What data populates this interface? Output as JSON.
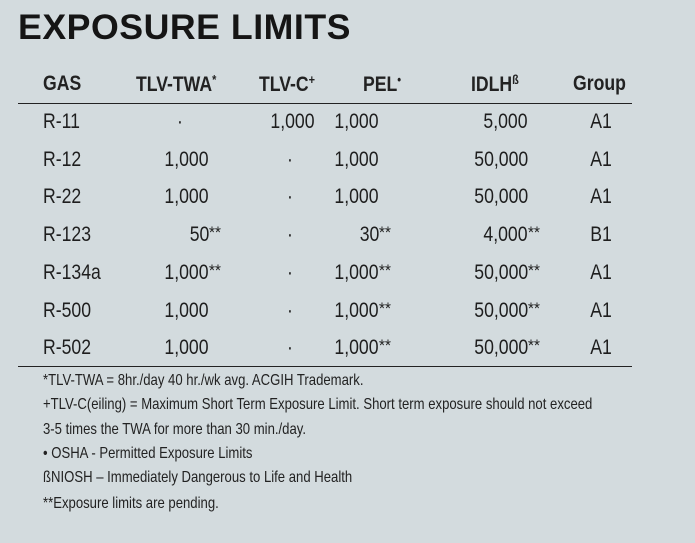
{
  "title": "EXPOSURE LIMITS",
  "headers": {
    "gas": "GAS",
    "tlv_twa": "TLV-TWA",
    "tlv_twa_mark": "*",
    "tlv_c": "TLV-C",
    "tlv_c_mark": "+",
    "pel": "PEL",
    "pel_mark": "•",
    "idlh": "IDLH",
    "idlh_mark": "ß",
    "group": "Group"
  },
  "rows": [
    {
      "gas": "R-11",
      "tlv_twa": "·",
      "tlv_twa_s": "",
      "tlv_c": "1,000",
      "pel": "1,000",
      "pel_s": "",
      "idlh": "5,000",
      "idlh_s": "",
      "group": "A1"
    },
    {
      "gas": "R-12",
      "tlv_twa": "1,000",
      "tlv_twa_s": "",
      "tlv_c": "·",
      "pel": "1,000",
      "pel_s": "",
      "idlh": "50,000",
      "idlh_s": "",
      "group": "A1"
    },
    {
      "gas": "R-22",
      "tlv_twa": "1,000",
      "tlv_twa_s": "",
      "tlv_c": "·",
      "pel": "1,000",
      "pel_s": "",
      "idlh": "50,000",
      "idlh_s": "",
      "group": "A1"
    },
    {
      "gas": "R-123",
      "tlv_twa": "50",
      "tlv_twa_s": "**",
      "tlv_c": "·",
      "pel": "30",
      "pel_s": "**",
      "idlh": "4,000",
      "idlh_s": "**",
      "group": "B1"
    },
    {
      "gas": "R-134a",
      "tlv_twa": "1,000",
      "tlv_twa_s": "**",
      "tlv_c": "·",
      "pel": "1,000",
      "pel_s": "**",
      "idlh": "50,000",
      "idlh_s": "**",
      "group": "A1"
    },
    {
      "gas": "R-500",
      "tlv_twa": "1,000",
      "tlv_twa_s": "",
      "tlv_c": "·",
      "pel": "1,000",
      "pel_s": "**",
      "idlh": "50,000",
      "idlh_s": "**",
      "group": "A1"
    },
    {
      "gas": "R-502",
      "tlv_twa": "1,000",
      "tlv_twa_s": "",
      "tlv_c": "·",
      "pel": "1,000",
      "pel_s": "**",
      "idlh": "50,000",
      "idlh_s": "**",
      "group": "A1"
    }
  ],
  "footnotes": [
    "*TLV-TWA = 8hr./day 40 hr./wk avg. ACGIH Trademark.",
    "+TLV-C(eiling) = Maximum Short Term Exposure Limit. Short term exposure should not exceed",
    "3-5 times the TWA for more than 30 min./day.",
    "• OSHA - Permitted Exposure Limits",
    "ßNIOSH – Immediately Dangerous to Life and Health",
    "**Exposure limits are pending."
  ]
}
